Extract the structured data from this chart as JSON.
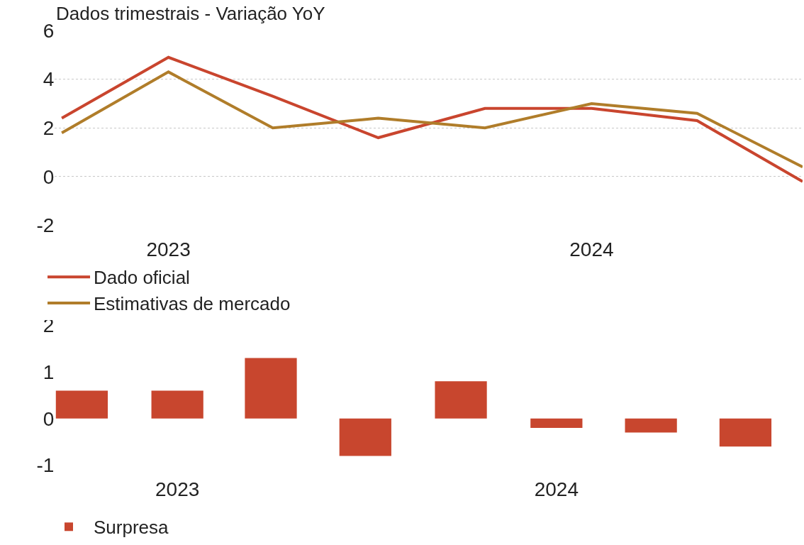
{
  "chart_data": [
    {
      "type": "line",
      "title": "Dados trimestrais - Variação YoY",
      "x": [
        "2022-10",
        "2023-01",
        "2023-04",
        "2023-07",
        "2023-10",
        "2024-01",
        "2024-04",
        "2024-07"
      ],
      "series": [
        {
          "name": "Dado oficial",
          "color": "#c9452e",
          "values": [
            2.4,
            4.9,
            3.3,
            1.6,
            2.8,
            2.8,
            2.3,
            -0.2
          ]
        },
        {
          "name": "Estimativas de mercado",
          "color": "#b07d2a",
          "values": [
            1.8,
            4.3,
            2.0,
            2.4,
            2.0,
            3.0,
            2.6,
            0.4
          ]
        }
      ],
      "xlim": [
        "2022-09-25",
        "2024-07-01"
      ],
      "xticks": [
        "2023",
        "2024"
      ],
      "ylim": [
        -2,
        6
      ],
      "yticks": [
        -2,
        0,
        2,
        4,
        6
      ],
      "grid": "y",
      "legend": "bottom",
      "marker": "none",
      "line_style": "solid"
    },
    {
      "type": "bar",
      "x": [
        "2022-10",
        "2023-01",
        "2023-04",
        "2023-07",
        "2023-10",
        "2024-01",
        "2024-04",
        "2024-07"
      ],
      "series": [
        {
          "name": "Surpresa",
          "color": "#c8462e",
          "values": [
            0.6,
            0.6,
            1.3,
            -0.8,
            0.8,
            -0.2,
            -0.3,
            -0.6
          ]
        }
      ],
      "xlim": [
        "2022-09-05",
        "2024-08-25"
      ],
      "xticks": [
        "2023",
        "2024"
      ],
      "ylim": [
        -1,
        2
      ],
      "yticks": [
        -1,
        0,
        1,
        2
      ],
      "grid": false,
      "legend": "bottom"
    }
  ]
}
